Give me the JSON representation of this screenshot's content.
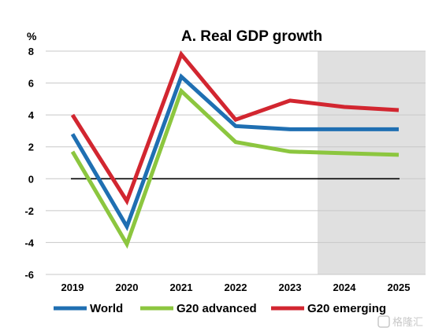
{
  "chart_data": {
    "type": "line",
    "title": "A. Real GDP growth",
    "ylabel": "%",
    "xlabel": "",
    "categories": [
      "2019",
      "2020",
      "2021",
      "2022",
      "2023",
      "2024",
      "2025"
    ],
    "ylim": [
      -6,
      8
    ],
    "yticks": [
      8,
      6,
      4,
      2,
      0,
      -2,
      -4,
      -6
    ],
    "grid": true,
    "legend_position": "bottom",
    "shaded_categories": [
      "2024",
      "2025"
    ],
    "zero_line": true,
    "series": [
      {
        "name": "World",
        "color": "#1f6fb2",
        "values": [
          2.8,
          -3.0,
          6.4,
          3.3,
          3.1,
          3.1,
          3.1
        ]
      },
      {
        "name": "G20 advanced",
        "color": "#8cc63f",
        "values": [
          1.7,
          -4.1,
          5.5,
          2.3,
          1.7,
          1.6,
          1.5
        ]
      },
      {
        "name": "G20 emerging",
        "color": "#d22630",
        "values": [
          4.0,
          -1.4,
          7.8,
          3.7,
          4.9,
          4.5,
          4.3
        ]
      }
    ]
  },
  "watermark": "格隆汇"
}
